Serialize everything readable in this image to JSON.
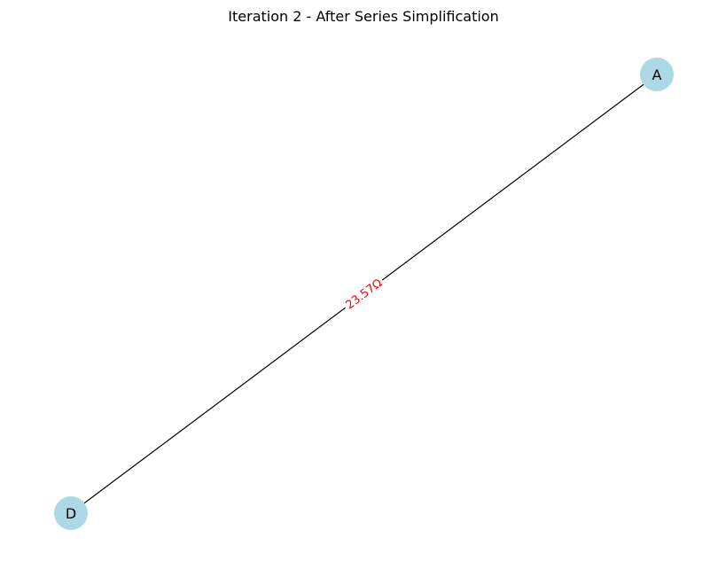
{
  "title": "Iteration 2 - After Series Simplification",
  "colors": {
    "node_fill": "#add8e6",
    "edge_stroke": "#000000",
    "edge_label": "#ff0000"
  },
  "nodes": [
    {
      "id": "A",
      "label": "A"
    },
    {
      "id": "D",
      "label": "D"
    }
  ],
  "edges": [
    {
      "from": "A",
      "to": "D",
      "label": "23.57Ω"
    }
  ]
}
